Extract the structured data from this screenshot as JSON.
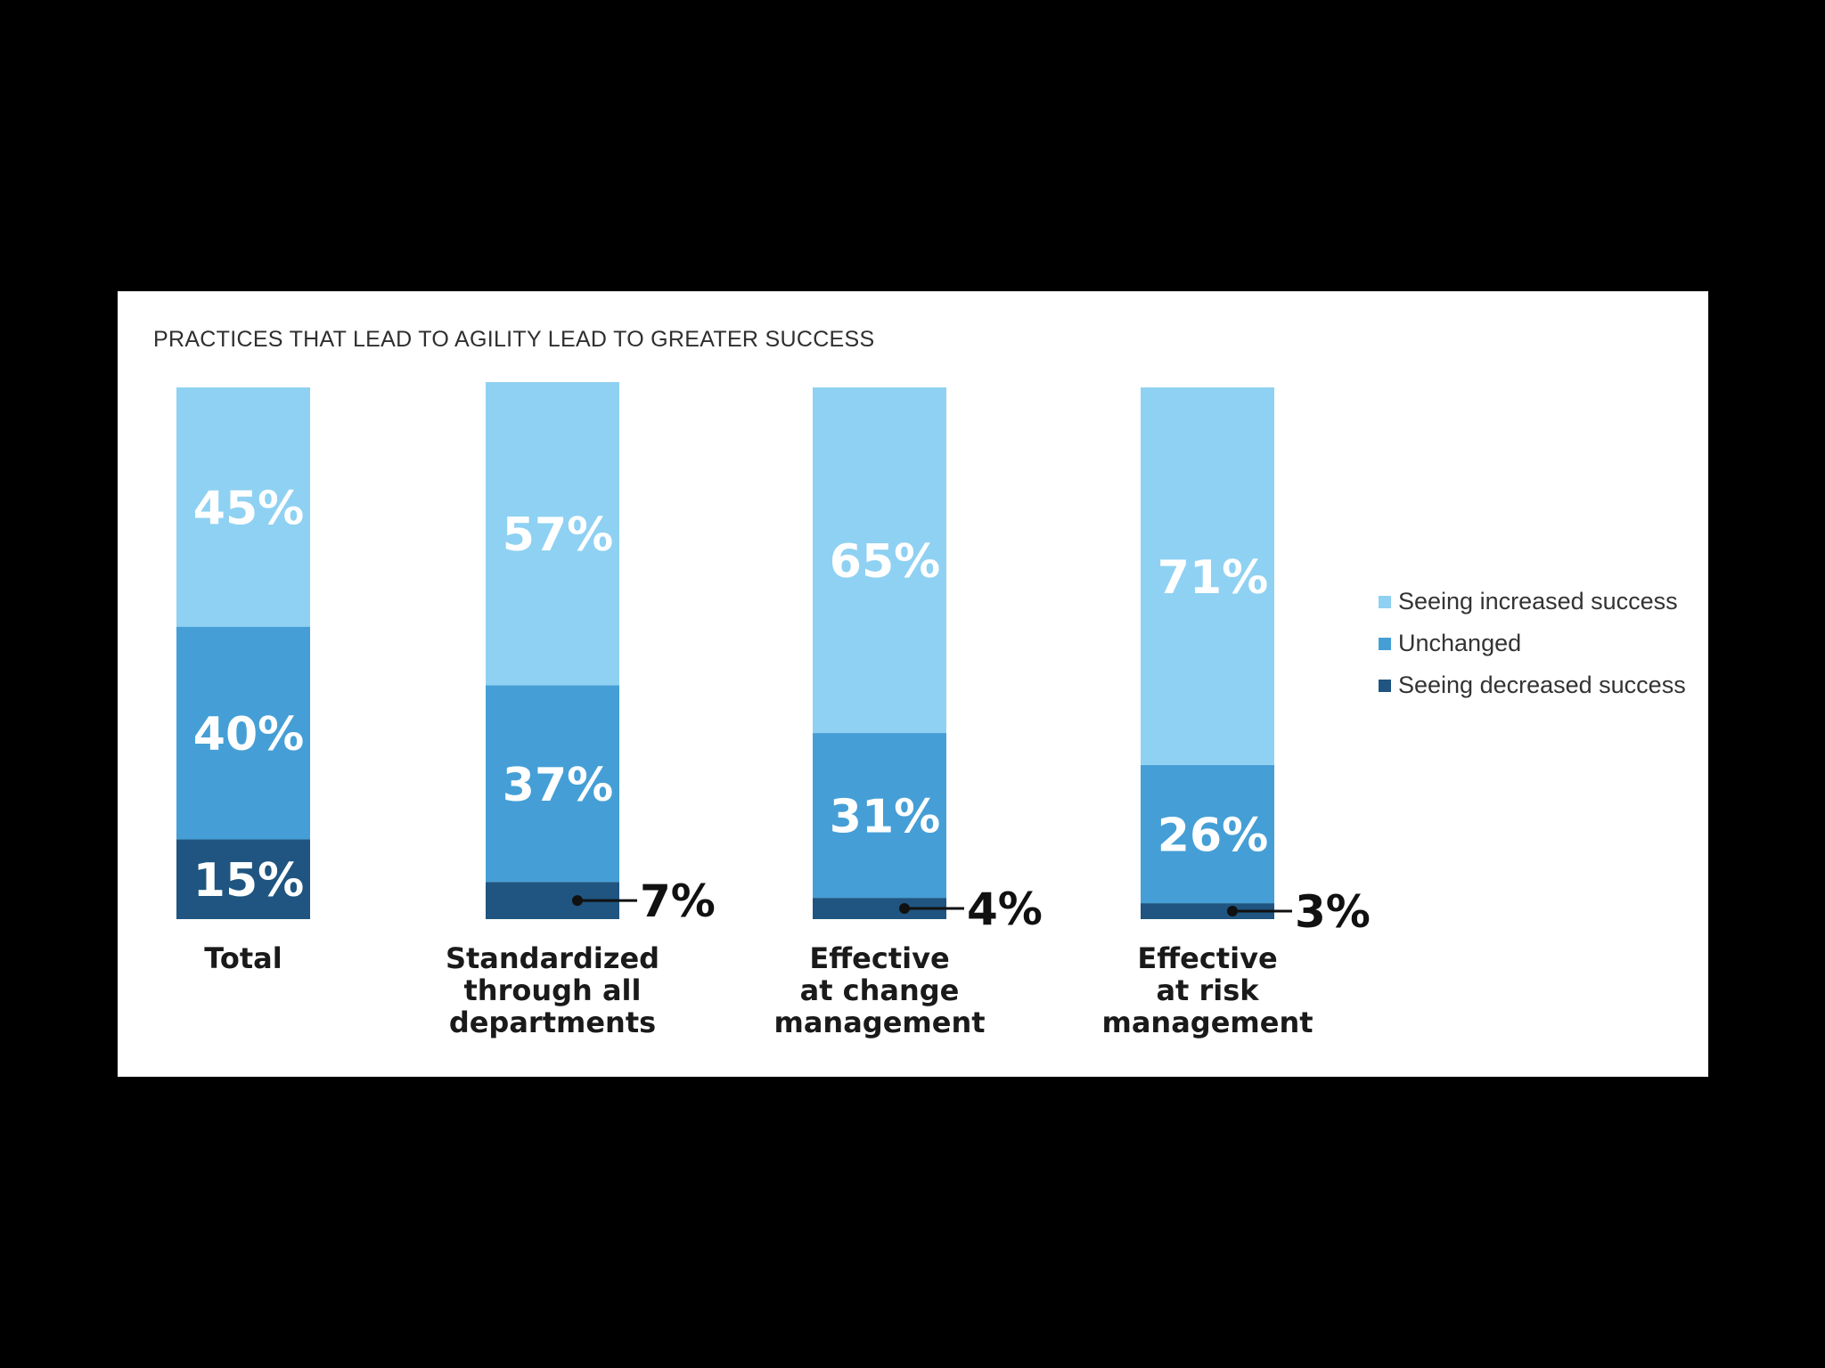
{
  "chart_data": {
    "type": "bar",
    "stacked": true,
    "title": "PRACTICES THAT LEAD TO AGILITY LEAD TO GREATER SUCCESS",
    "categories": [
      [
        "Total"
      ],
      [
        "Standardized",
        "through all",
        "departments"
      ],
      [
        "Effective",
        "at change",
        "management"
      ],
      [
        "Effective",
        "at risk",
        "management"
      ]
    ],
    "series": [
      {
        "name": "Seeing decreased success",
        "color": "#1f5580",
        "values": [
          15,
          7,
          4,
          3
        ],
        "labels": [
          "15%",
          "7%",
          "4%",
          "3%"
        ]
      },
      {
        "name": "Unchanged",
        "color": "#459fd6",
        "values": [
          40,
          37,
          31,
          26
        ],
        "labels": [
          "40%",
          "37%",
          "31%",
          "26%"
        ]
      },
      {
        "name": "Seeing increased success",
        "color": "#8fd1f2",
        "values": [
          45,
          57,
          65,
          71
        ],
        "labels": [
          "45%",
          "57%",
          "65%",
          "71%"
        ]
      }
    ],
    "ylim": [
      0,
      100
    ],
    "legend": [
      {
        "name": "Seeing increased success",
        "color": "#8fd1f2"
      },
      {
        "name": "Unchanged",
        "color": "#459fd6"
      },
      {
        "name": "Seeing decreased success",
        "color": "#1f5580"
      }
    ],
    "legend_position": "right"
  }
}
